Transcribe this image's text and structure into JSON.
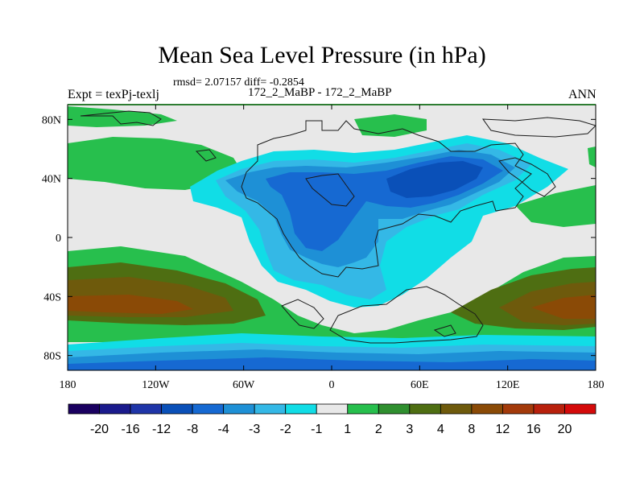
{
  "title": "Mean Sea Level Pressure (in hPa)",
  "stats": "rmsd= 2.07157 diff= -0.2854",
  "subtitle": "172_2_MaBP - 172_2_MaBP",
  "expt_label": "Expt = texPj-texlj",
  "season": "ANN",
  "map": {
    "type": "contour-map",
    "projection": "cylindrical-equidistant",
    "lon_range": [
      -180,
      180
    ],
    "lat_range": [
      -90,
      90
    ],
    "lon_ticks": [
      {
        "value": -180,
        "label": "180"
      },
      {
        "value": -120,
        "label": "120W"
      },
      {
        "value": -60,
        "label": "60W"
      },
      {
        "value": 0,
        "label": "0"
      },
      {
        "value": 60,
        "label": "60E"
      },
      {
        "value": 120,
        "label": "120E"
      },
      {
        "value": 180,
        "label": "180"
      }
    ],
    "lat_ticks": [
      {
        "value": 80,
        "label": "80N"
      },
      {
        "value": 40,
        "label": "40N"
      },
      {
        "value": 0,
        "label": "0"
      },
      {
        "value": -40,
        "label": "40S"
      },
      {
        "value": -80,
        "label": "80S"
      }
    ]
  },
  "colorbar": {
    "colors": [
      "#1a0060",
      "#1a1a8c",
      "#1f35a8",
      "#0a50b8",
      "#1669d2",
      "#1e90d6",
      "#34b8e6",
      "#11dde6",
      "#e8e8e8",
      "#27bf4d",
      "#2f8f2f",
      "#4e6e12",
      "#6e5a0c",
      "#8a4a06",
      "#a33a0a",
      "#b8200c",
      "#d40a0a"
    ],
    "labels": [
      {
        "boundary": 1,
        "text": "-20"
      },
      {
        "boundary": 2,
        "text": "-16"
      },
      {
        "boundary": 3,
        "text": "-12"
      },
      {
        "boundary": 4,
        "text": "-8"
      },
      {
        "boundary": 5,
        "text": "-4"
      },
      {
        "boundary": 6,
        "text": "-3"
      },
      {
        "boundary": 7,
        "text": "-2"
      },
      {
        "boundary": 8,
        "text": "-1"
      },
      {
        "boundary": 9,
        "text": "1"
      },
      {
        "boundary": 10,
        "text": "2"
      },
      {
        "boundary": 11,
        "text": "3"
      },
      {
        "boundary": 12,
        "text": "4"
      },
      {
        "boundary": 13,
        "text": "8"
      },
      {
        "boundary": 14,
        "text": "12"
      },
      {
        "boundary": 15,
        "text": "16"
      },
      {
        "boundary": 16,
        "text": "20"
      }
    ]
  },
  "colors": {
    "land_neutral": "#e8e8e8",
    "green": "#27bf4d",
    "olive": "#4e6e12",
    "brown": "#6e5a0c",
    "dark_brown": "#8a4a06",
    "cyan": "#11dde6",
    "light_blue": "#34b8e6",
    "mid_blue": "#1e90d6",
    "blue": "#1669d2",
    "deep_blue": "#0a50b8",
    "frame": "#2e7d32"
  }
}
